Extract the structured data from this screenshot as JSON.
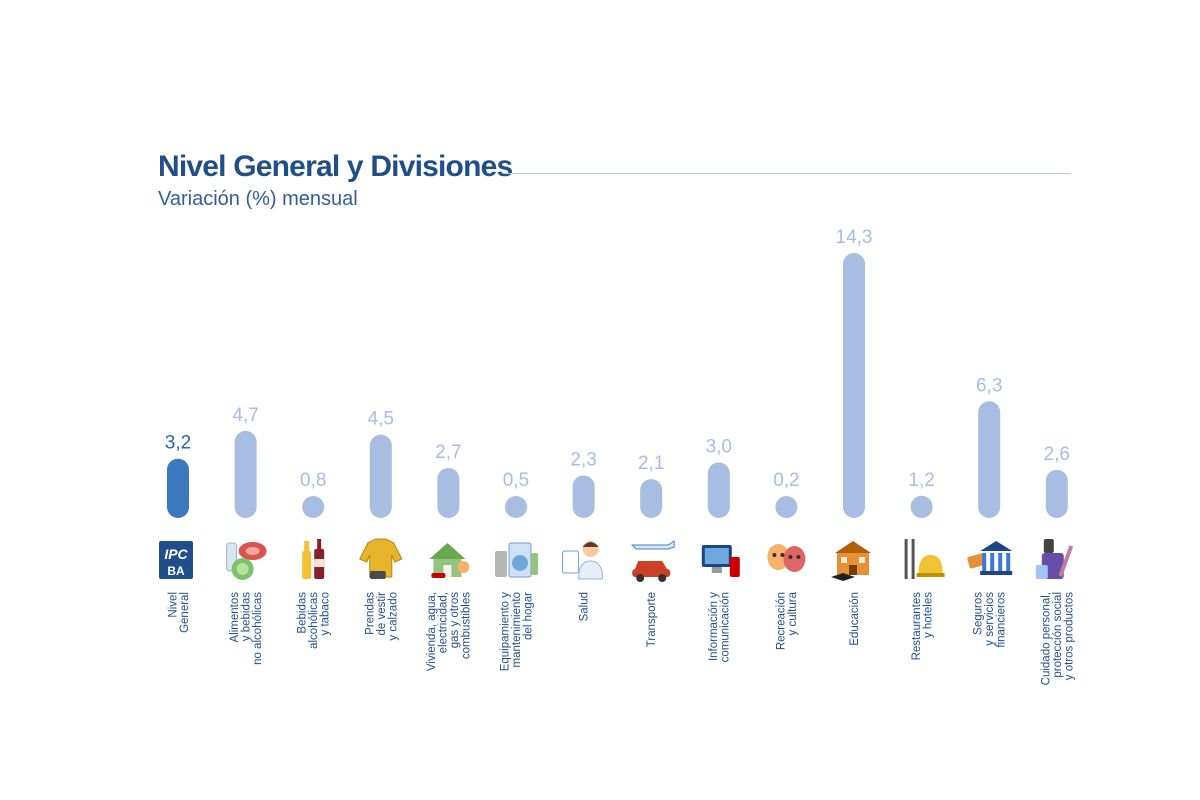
{
  "chart_data": {
    "type": "bar",
    "title": "Nivel General y Divisiones",
    "subtitle": "Variación (%) mensual",
    "ylim": [
      0,
      14.3
    ],
    "categories": [
      {
        "lines": [
          "Nivel",
          "General"
        ],
        "icon": "ipc-ba-logo-icon",
        "value": 3.2,
        "label": "3,2",
        "highlight": true
      },
      {
        "lines": [
          "Alimentos",
          "y bebidas",
          "no alcohólicas"
        ],
        "icon": "food-icon",
        "value": 4.7,
        "label": "4,7",
        "highlight": false
      },
      {
        "lines": [
          "Bebidas",
          "alcohólicas",
          "y tabaco"
        ],
        "icon": "bottles-icon",
        "value": 0.8,
        "label": "0,8",
        "highlight": false
      },
      {
        "lines": [
          "Prendas",
          "de vestir",
          "y calzado"
        ],
        "icon": "clothing-icon",
        "value": 4.5,
        "label": "4,5",
        "highlight": false
      },
      {
        "lines": [
          "Vivienda, agua,",
          "electricidad,",
          "gas y otros",
          "combustibles"
        ],
        "icon": "house-icon",
        "value": 2.7,
        "label": "2,7",
        "highlight": false
      },
      {
        "lines": [
          "Equipamiento y",
          "mantenimiento",
          "del hogar"
        ],
        "icon": "appliances-icon",
        "value": 0.5,
        "label": "0,5",
        "highlight": false
      },
      {
        "lines": [
          "Salud"
        ],
        "icon": "doctor-icon",
        "value": 2.3,
        "label": "2,3",
        "highlight": false
      },
      {
        "lines": [
          "Transporte"
        ],
        "icon": "car-plane-icon",
        "value": 2.1,
        "label": "2,1",
        "highlight": false
      },
      {
        "lines": [
          "Información y",
          "comunicación"
        ],
        "icon": "devices-icon",
        "value": 3.0,
        "label": "3,0",
        "highlight": false
      },
      {
        "lines": [
          "Recreación",
          "y cultura"
        ],
        "icon": "theater-masks-icon",
        "value": 0.2,
        "label": "0,2",
        "highlight": false
      },
      {
        "lines": [
          "Educación"
        ],
        "icon": "school-icon",
        "value": 14.3,
        "label": "14,3",
        "highlight": false
      },
      {
        "lines": [
          "Restaurantes",
          "y hoteles"
        ],
        "icon": "restaurant-icon",
        "value": 1.2,
        "label": "1,2",
        "highlight": false
      },
      {
        "lines": [
          "Seguros",
          "y servicios",
          "financieros"
        ],
        "icon": "bank-icon",
        "value": 6.3,
        "label": "6,3",
        "highlight": false
      },
      {
        "lines": [
          "Cuidado personal,",
          "protección social",
          "y otros productos"
        ],
        "icon": "personal-care-icon",
        "value": 2.6,
        "label": "2,6",
        "highlight": false
      }
    ]
  },
  "colors": {
    "bar": "#a7bde2",
    "bar_highlight": "#3b78c0",
    "label": "#a7bde2",
    "label_highlight": "#2a66ad",
    "text": "#1f4e89"
  }
}
